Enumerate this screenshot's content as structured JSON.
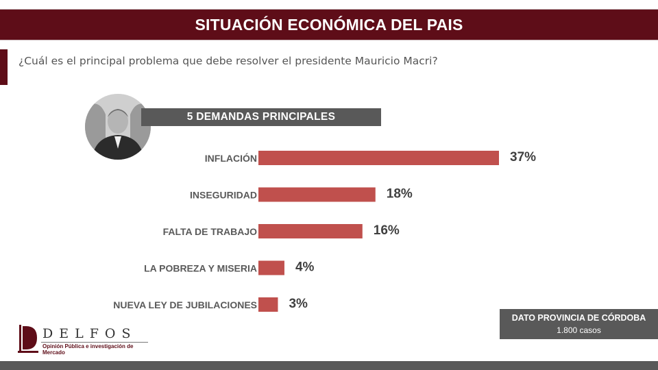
{
  "header": {
    "title": "SITUACIÓN ECONÓMICA DEL PAIS"
  },
  "question": "¿Cuál es el principal problema que debe resolver el presidente Mauricio Macri?",
  "subtitle": "5 DEMANDAS PRINCIPALES",
  "chart_data": {
    "type": "bar",
    "orientation": "horizontal",
    "title": "5 DEMANDAS PRINCIPALES",
    "categories": [
      "INFLACIÓN",
      "INSEGURIDAD",
      "FALTA DE TRABAJO",
      "LA POBREZA Y MISERIA",
      "NUEVA LEY DE JUBILACIONES"
    ],
    "values": [
      37,
      18,
      16,
      4,
      3
    ],
    "value_labels": [
      "37%",
      "18%",
      "16%",
      "4%",
      "3%"
    ],
    "unit": "%",
    "xlim": [
      0,
      40
    ],
    "bar_color": "#c0504d",
    "grid": false,
    "legend": "none"
  },
  "source": {
    "line1": "DATO PROVINCIA DE CÓRDOBA",
    "line2": "1.800 casos"
  },
  "logo": {
    "name": "DELFOS",
    "tagline": "Opinión Pública e investigación de Mercado"
  },
  "colors": {
    "brand": "#5e0d18",
    "bar": "#c0504d",
    "panel": "#595959"
  }
}
